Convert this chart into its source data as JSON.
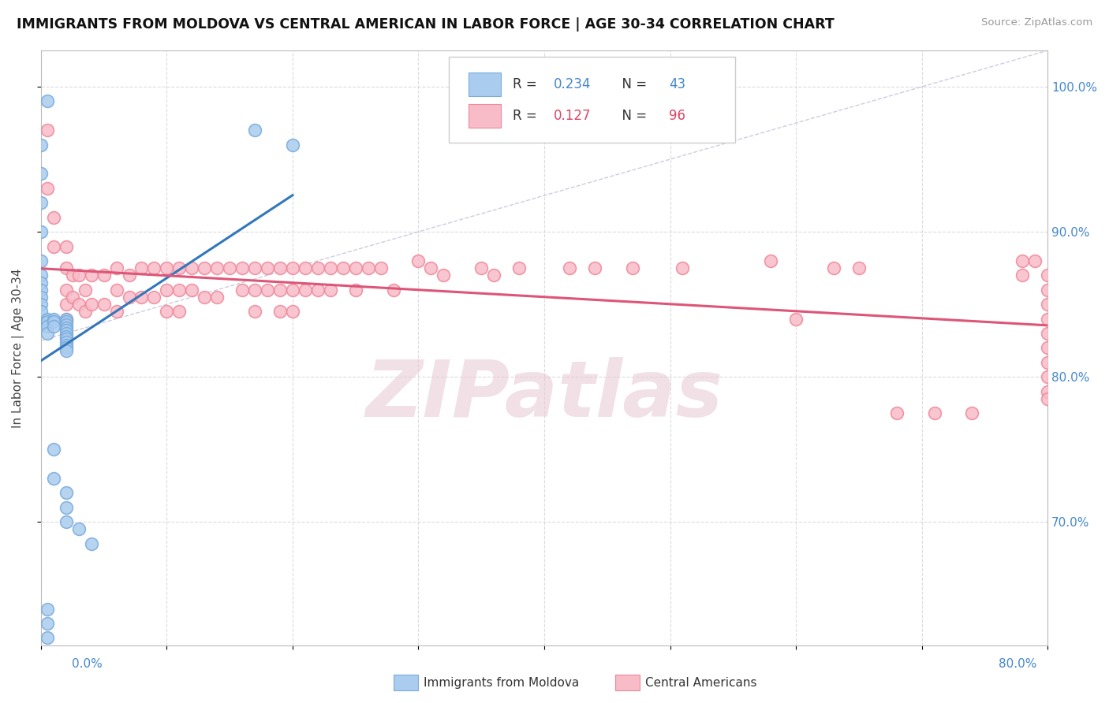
{
  "title": "IMMIGRANTS FROM MOLDOVA VS CENTRAL AMERICAN IN LABOR FORCE | AGE 30-34 CORRELATION CHART",
  "source": "Source: ZipAtlas.com",
  "ylabel": "In Labor Force | Age 30-34",
  "legend_label_moldova": "Immigrants from Moldova",
  "legend_label_central": "Central Americans",
  "x_min": 0.0,
  "x_max": 0.8,
  "y_min": 0.615,
  "y_max": 1.025,
  "ylabel_tick_vals": [
    0.7,
    0.8,
    0.9,
    1.0
  ],
  "moldova_R": 0.234,
  "moldova_N": 43,
  "central_R": 0.127,
  "central_N": 96,
  "moldova_color": "#aaccee",
  "moldova_edge_color": "#7aabdd",
  "moldova_line_color": "#3377bb",
  "central_color": "#f8bbc8",
  "central_edge_color": "#ee8899",
  "central_line_color": "#dd5577",
  "grid_color": "#cccccc",
  "diag_color": "#aaaacc",
  "watermark_color": "#e8c8d4",
  "moldova_x": [
    0.005,
    0.17,
    0.2,
    0.0,
    0.0,
    0.0,
    0.0,
    0.0,
    0.0,
    0.0,
    0.0,
    0.0,
    0.0,
    0.0,
    0.005,
    0.005,
    0.005,
    0.005,
    0.01,
    0.01,
    0.01,
    0.02,
    0.02,
    0.02,
    0.02,
    0.02,
    0.02,
    0.02,
    0.02,
    0.02,
    0.02,
    0.02,
    0.02,
    0.01,
    0.01,
    0.02,
    0.02,
    0.02,
    0.03,
    0.04,
    0.005,
    0.005,
    0.005
  ],
  "moldova_y": [
    0.99,
    0.97,
    0.96,
    0.96,
    0.94,
    0.92,
    0.9,
    0.88,
    0.87,
    0.865,
    0.86,
    0.855,
    0.85,
    0.845,
    0.84,
    0.838,
    0.835,
    0.83,
    0.84,
    0.838,
    0.835,
    0.84,
    0.838,
    0.836,
    0.834,
    0.832,
    0.83,
    0.828,
    0.826,
    0.824,
    0.822,
    0.82,
    0.818,
    0.75,
    0.73,
    0.72,
    0.71,
    0.7,
    0.695,
    0.685,
    0.64,
    0.63,
    0.62
  ],
  "central_x": [
    0.005,
    0.005,
    0.01,
    0.01,
    0.02,
    0.02,
    0.02,
    0.02,
    0.02,
    0.025,
    0.025,
    0.03,
    0.03,
    0.035,
    0.035,
    0.04,
    0.04,
    0.05,
    0.05,
    0.06,
    0.06,
    0.06,
    0.07,
    0.07,
    0.08,
    0.08,
    0.09,
    0.09,
    0.1,
    0.1,
    0.1,
    0.11,
    0.11,
    0.11,
    0.12,
    0.12,
    0.13,
    0.13,
    0.14,
    0.14,
    0.15,
    0.16,
    0.16,
    0.17,
    0.17,
    0.17,
    0.18,
    0.18,
    0.19,
    0.19,
    0.19,
    0.2,
    0.2,
    0.2,
    0.21,
    0.21,
    0.22,
    0.22,
    0.23,
    0.23,
    0.24,
    0.25,
    0.25,
    0.26,
    0.27,
    0.28,
    0.3,
    0.31,
    0.32,
    0.35,
    0.36,
    0.38,
    0.42,
    0.44,
    0.47,
    0.51,
    0.58,
    0.6,
    0.63,
    0.65,
    0.68,
    0.71,
    0.74,
    0.78,
    0.78,
    0.79,
    0.8,
    0.8,
    0.8,
    0.8,
    0.8,
    0.8,
    0.8,
    0.8,
    0.8,
    0.8
  ],
  "central_y": [
    0.97,
    0.93,
    0.91,
    0.89,
    0.89,
    0.875,
    0.86,
    0.85,
    0.84,
    0.87,
    0.855,
    0.87,
    0.85,
    0.86,
    0.845,
    0.87,
    0.85,
    0.87,
    0.85,
    0.875,
    0.86,
    0.845,
    0.87,
    0.855,
    0.875,
    0.855,
    0.875,
    0.855,
    0.875,
    0.86,
    0.845,
    0.875,
    0.86,
    0.845,
    0.875,
    0.86,
    0.875,
    0.855,
    0.875,
    0.855,
    0.875,
    0.875,
    0.86,
    0.875,
    0.86,
    0.845,
    0.875,
    0.86,
    0.875,
    0.86,
    0.845,
    0.875,
    0.86,
    0.845,
    0.875,
    0.86,
    0.875,
    0.86,
    0.875,
    0.86,
    0.875,
    0.875,
    0.86,
    0.875,
    0.875,
    0.86,
    0.88,
    0.875,
    0.87,
    0.875,
    0.87,
    0.875,
    0.875,
    0.875,
    0.875,
    0.875,
    0.88,
    0.84,
    0.875,
    0.875,
    0.775,
    0.775,
    0.775,
    0.88,
    0.87,
    0.88,
    0.87,
    0.86,
    0.85,
    0.84,
    0.83,
    0.82,
    0.81,
    0.8,
    0.79,
    0.785
  ]
}
